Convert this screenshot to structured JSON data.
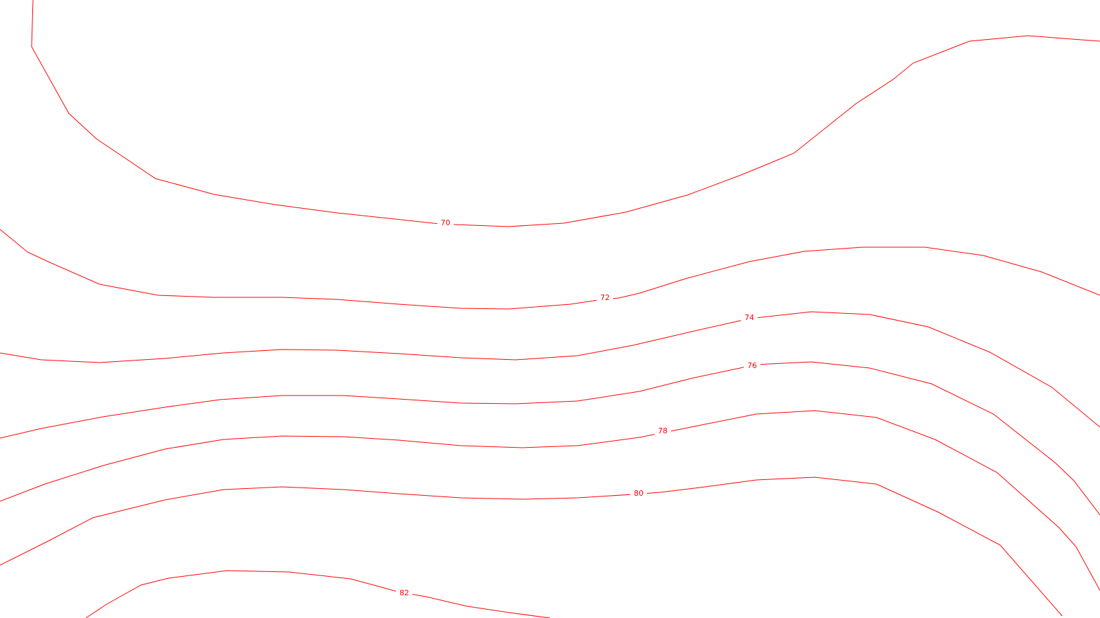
{
  "map": {
    "line_color": "#ff0000",
    "background": "#ffffff",
    "contour_labels": [
      "70",
      "72",
      "74",
      "76",
      "78",
      "80",
      "82"
    ]
  }
}
